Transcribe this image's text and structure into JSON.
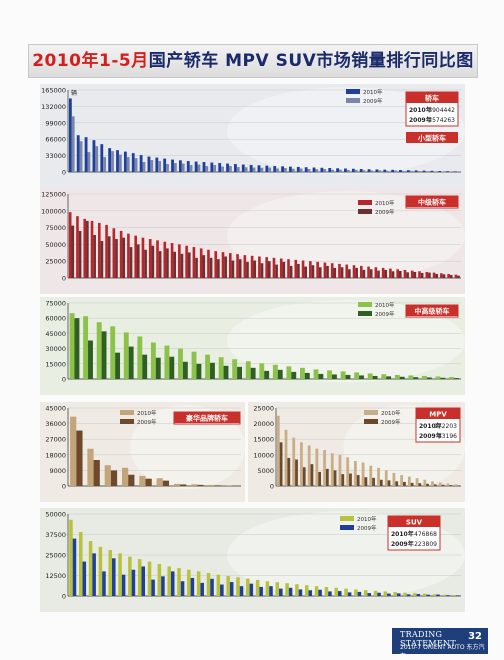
{
  "title": {
    "highlight": "2010年1-5月",
    "main": "国产轿车 MPV SUV市场销量排行同比图"
  },
  "legend": {
    "y2010": "2010年",
    "y2009": "2009年"
  },
  "footer": {
    "line1": "TRADING STATEMENT",
    "line2": "2010-7 ORIENT AUTO 东方汽车",
    "page": "32"
  },
  "colors": {
    "page_bg": "#fbfbfb",
    "title_red": "#d51f1f",
    "box_red": "#c9302c",
    "footer_blue": "#1f3f7a"
  },
  "chart_data": [
    {
      "id": "sedan-small",
      "type": "bar",
      "unit": "辆",
      "ylim": [
        0,
        165000
      ],
      "yticks": [
        0,
        33000,
        66000,
        99000,
        132000,
        165000
      ],
      "tag": "轿车",
      "sub_tag": "小型轿车",
      "totals": [
        {
          "year": "2010年",
          "value": "3904442"
        },
        {
          "year": "2009年",
          "value": "2574263"
        }
      ],
      "colors": {
        "c2010": "#1f3f9c",
        "c2009": "#7a86a8",
        "bg": "#e9eaee",
        "tag": "#c9302c"
      },
      "series": [
        {
          "name": "2010年",
          "values": [
            148000,
            74000,
            70000,
            64000,
            56000,
            48000,
            44000,
            41000,
            38000,
            34000,
            31000,
            29000,
            27000,
            25000,
            23500,
            22000,
            21000,
            20000,
            19000,
            18000,
            17000,
            16000,
            15000,
            14200,
            13500,
            12800,
            12000,
            11400,
            10800,
            10200,
            9600,
            9000,
            8500,
            8000,
            7500,
            7000,
            6500,
            6000,
            5600,
            5200,
            4800,
            4400,
            4000,
            3600,
            3200,
            2800,
            2400,
            2000,
            1600,
            1200
          ]
        },
        {
          "name": "2009年",
          "values": [
            112000,
            62000,
            40000,
            52000,
            30000,
            42000,
            35000,
            30000,
            28000,
            20000,
            24000,
            22000,
            16000,
            18000,
            17000,
            14000,
            15000,
            12000,
            14000,
            11000,
            12000,
            10000,
            9500,
            9000,
            8500,
            9000,
            7000,
            8000,
            6500,
            7000,
            6000,
            5500,
            6000,
            4500,
            5000,
            4000,
            4200,
            3500,
            3000,
            3500,
            2500,
            3000,
            2000,
            2200,
            1800,
            1500,
            1200,
            1000,
            800,
            600
          ]
        }
      ]
    },
    {
      "id": "sedan-mid",
      "type": "bar",
      "ylim": [
        0,
        125000
      ],
      "yticks": [
        0,
        25000,
        50000,
        75000,
        100000,
        125000
      ],
      "tag": "中级轿车",
      "colors": {
        "c2010": "#b8252c",
        "c2009": "#6b3030",
        "bg": "#efe7e7",
        "tag": "#c9302c"
      },
      "series": [
        {
          "name": "2010年",
          "values": [
            98000,
            92000,
            88000,
            85000,
            82000,
            79000,
            74000,
            70000,
            66000,
            63000,
            60000,
            58000,
            56000,
            54000,
            52000,
            50000,
            48000,
            46000,
            44000,
            42000,
            40000,
            38500,
            37000,
            35500,
            34000,
            33000,
            32000,
            31000,
            30000,
            29000,
            28000,
            27000,
            26000,
            25000,
            24000,
            23000,
            22000,
            21000,
            20000,
            19000,
            18000,
            17000,
            16000,
            15000,
            14000,
            13000,
            12000,
            11000,
            10000,
            9000,
            8000,
            7000,
            6000,
            5000
          ]
        },
        {
          "name": "2009年",
          "values": [
            78000,
            70000,
            85000,
            64000,
            55000,
            62000,
            58000,
            60000,
            46000,
            50000,
            42000,
            48000,
            40000,
            44000,
            39000,
            36000,
            38000,
            30000,
            34000,
            30000,
            28000,
            32000,
            26000,
            28000,
            24000,
            26000,
            22000,
            25000,
            20000,
            24000,
            18000,
            21000,
            17000,
            19000,
            16000,
            18000,
            15000,
            16000,
            13000,
            15000,
            12000,
            13000,
            11000,
            12000,
            10000,
            10500,
            8500,
            9000,
            7500,
            8000,
            6000,
            5500,
            4500,
            3500
          ]
        }
      ]
    },
    {
      "id": "sedan-upper",
      "type": "bar",
      "ylim": [
        0,
        75000
      ],
      "yticks": [
        0,
        15000,
        30000,
        45000,
        60000,
        75000
      ],
      "tag": "中高级轿车",
      "colors": {
        "c2010": "#8cc24a",
        "c2009": "#2f5f22",
        "bg": "#e8efe2",
        "tag": "#c9302c"
      },
      "series": [
        {
          "name": "2010年",
          "values": [
            65000,
            62000,
            56000,
            52000,
            46000,
            42000,
            36000,
            33000,
            30000,
            27000,
            24000,
            21500,
            19500,
            17500,
            15500,
            14000,
            12500,
            11000,
            9500,
            8500,
            7500,
            6500,
            5500,
            4700,
            4000,
            3500,
            3000,
            2500,
            2000
          ]
        },
        {
          "name": "2009年",
          "values": [
            60000,
            38000,
            47000,
            26000,
            32000,
            24000,
            21000,
            22000,
            17000,
            15000,
            16000,
            13000,
            12000,
            11000,
            8000,
            9000,
            7000,
            6000,
            5000,
            4500,
            4000,
            3500,
            3000,
            2600,
            2200,
            1800,
            1500,
            1200,
            900
          ]
        }
      ]
    },
    {
      "id": "sedan-luxury",
      "type": "bar",
      "ylim": [
        0,
        45000
      ],
      "yticks": [
        0,
        9000,
        18000,
        27000,
        36000,
        45000
      ],
      "tag": "豪华品牌轿车",
      "colors": {
        "c2010": "#c4a57a",
        "c2009": "#6e4a2c",
        "bg": "#efebe4",
        "tag": "#c9302c"
      },
      "series": [
        {
          "name": "2010年",
          "values": [
            40000,
            21500,
            12000,
            10500,
            5800,
            4500,
            1200,
            980,
            620,
            420
          ]
        },
        {
          "name": "2009年",
          "values": [
            32000,
            15000,
            9000,
            6500,
            4200,
            3100,
            900,
            650,
            380,
            210
          ]
        }
      ]
    },
    {
      "id": "mpv",
      "type": "bar",
      "ylim": [
        0,
        25000
      ],
      "yticks": [
        0,
        5000,
        10000,
        15000,
        20000,
        25000
      ],
      "tag": "MPV",
      "totals": [
        {
          "year": "2010年",
          "value": "172203"
        },
        {
          "year": "2009年",
          "value": "83196"
        }
      ],
      "colors": {
        "c2010": "#c9ad86",
        "c2009": "#6a4a2c",
        "bg": "#efebe4",
        "tag": "#c9302c"
      },
      "series": [
        {
          "name": "2010年",
          "values": [
            22500,
            18000,
            15500,
            14000,
            13000,
            12000,
            11500,
            10500,
            10000,
            9200,
            8000,
            7500,
            6500,
            5800,
            5000,
            4200,
            3500,
            3000,
            2500,
            2000,
            1500,
            1100,
            800,
            500
          ]
        },
        {
          "name": "2009年",
          "values": [
            14000,
            9000,
            8500,
            6000,
            7000,
            4500,
            5500,
            5000,
            3800,
            4000,
            3500,
            2800,
            2600,
            2000,
            1800,
            1500,
            1300,
            1000,
            900,
            700,
            500,
            400,
            300,
            200
          ]
        }
      ]
    },
    {
      "id": "suv",
      "type": "bar",
      "ylim": [
        0,
        50000
      ],
      "yticks": [
        0,
        12500,
        25000,
        37500,
        50000
      ],
      "tag": "SUV",
      "totals": [
        {
          "year": "2010年",
          "value": "476868"
        },
        {
          "year": "2009年",
          "value": "223809"
        }
      ],
      "colors": {
        "c2010": "#b9c23c",
        "c2009": "#1f3f9c",
        "bg": "#e8ebe4",
        "tag": "#c9302c"
      },
      "series": [
        {
          "name": "2010年",
          "values": [
            46500,
            39000,
            33500,
            30000,
            28000,
            26000,
            24000,
            22500,
            21000,
            19500,
            18000,
            17000,
            16000,
            15000,
            14000,
            13000,
            12200,
            11400,
            10600,
            9800,
            9000,
            8400,
            7800,
            7200,
            6600,
            6000,
            5500,
            5000,
            4500,
            4000,
            3600,
            3200,
            2800,
            2400,
            2000,
            1700,
            1400,
            1100,
            800,
            600
          ]
        },
        {
          "name": "2009年",
          "values": [
            35000,
            21000,
            26000,
            15000,
            23000,
            13000,
            16000,
            18000,
            10000,
            12000,
            15000,
            9000,
            11000,
            8000,
            10500,
            7000,
            8500,
            6000,
            7500,
            5500,
            6000,
            4500,
            5000,
            4000,
            3500,
            3800,
            2800,
            3000,
            2200,
            2500,
            1800,
            2000,
            1500,
            1600,
            1000,
            1200,
            800,
            900,
            500,
            400
          ]
        }
      ]
    }
  ]
}
